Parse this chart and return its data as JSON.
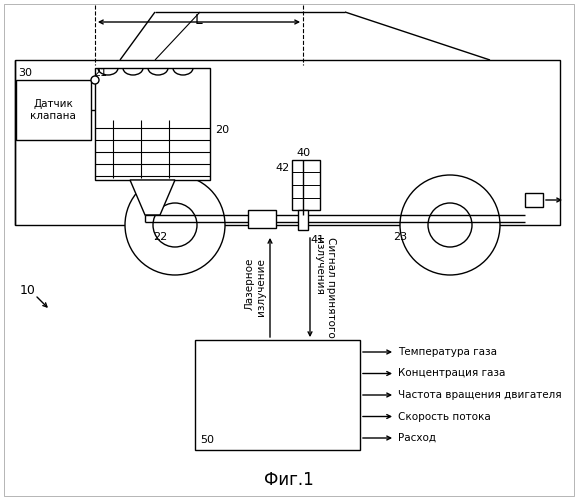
{
  "background_color": "#ffffff",
  "title": "Фиг.1",
  "valve_sensor_text": "Датчик\nклапана",
  "num_30": "30",
  "num_21": "21",
  "num_20": "20",
  "num_22": "22",
  "num_10": "10",
  "num_40": "40",
  "num_42": "42",
  "num_41": "41",
  "num_23": "23",
  "num_50": "50",
  "L_label": "L",
  "laser_text": "Лазерное\nизлучение",
  "signal_text": "Сигнал принятого\nизлучения",
  "out1": "Температура газа",
  "out2": "Концентрация газа",
  "out3": "Частота вращения двигателя",
  "out4": "Скорость потока",
  "out5": "Расход",
  "figsize": [
    5.78,
    5.0
  ],
  "dpi": 100
}
